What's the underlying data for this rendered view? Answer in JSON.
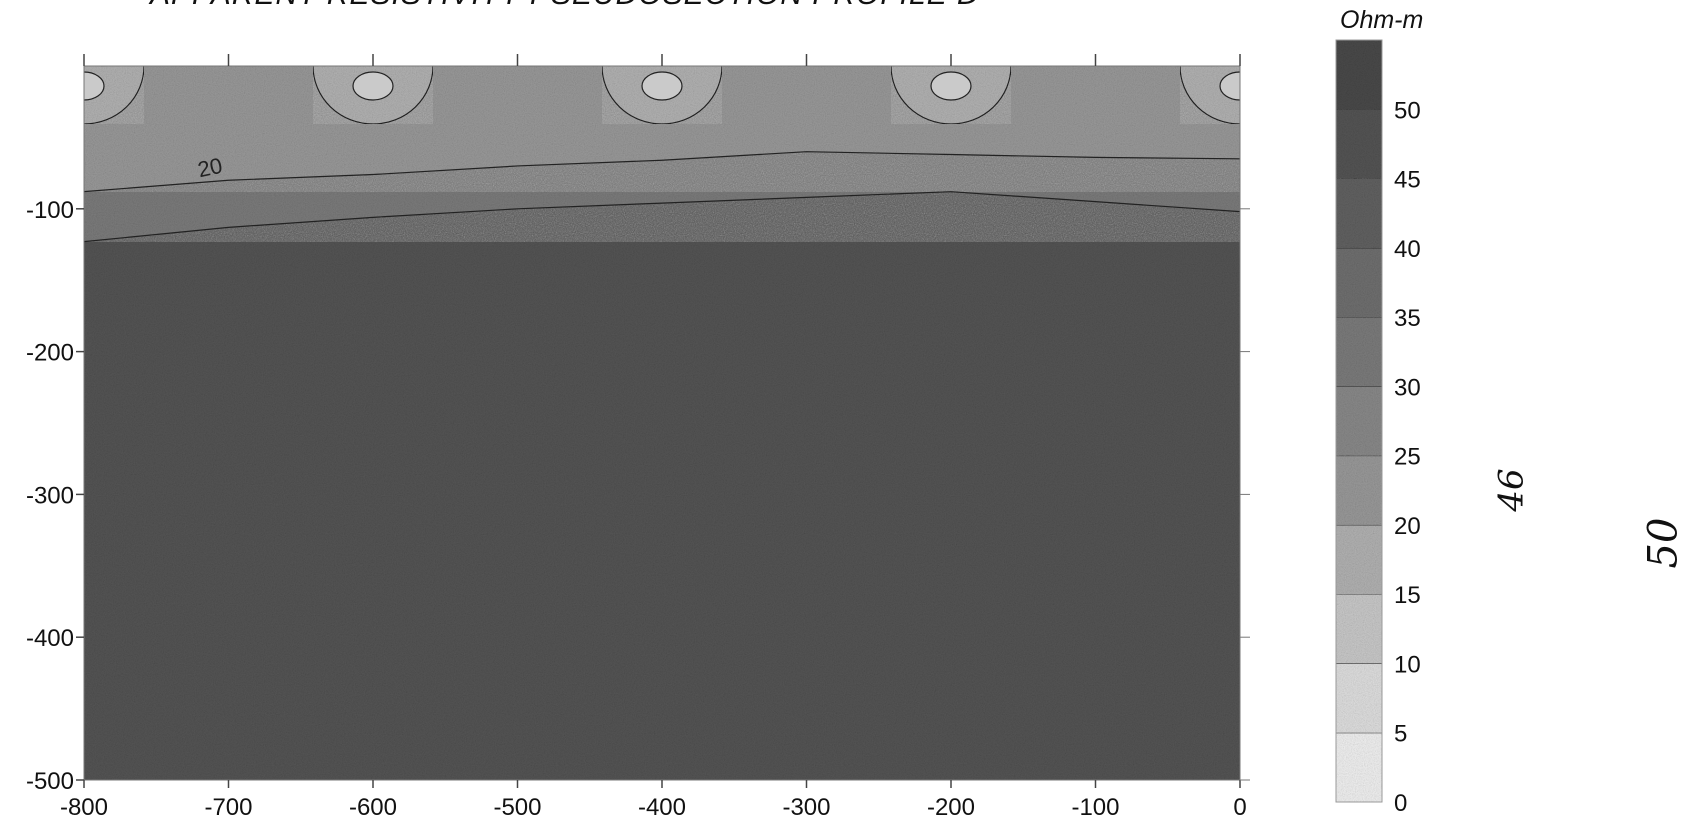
{
  "title": "APPARENT RESISTIVITY PSEUDOSECTION PROFILE D",
  "units": "Ohm-m",
  "handwritten_marks": [
    "46",
    "50"
  ],
  "colors": {
    "background": "#ffffff",
    "ink": "#111111"
  },
  "chart_data": {
    "type": "heatmap",
    "title": "APPARENT RESISTIVITY PSEUDOSECTION PROFILE D",
    "xlabel": "",
    "ylabel": "",
    "xlim": [
      -800,
      0
    ],
    "ylim": [
      -500,
      0
    ],
    "x_ticks": [
      -800,
      -700,
      -600,
      -500,
      -400,
      -300,
      -200,
      -100,
      0
    ],
    "y_ticks": [
      -100,
      -200,
      -300,
      -400,
      -500
    ],
    "colorbar": {
      "label": "Ohm-m",
      "min": 0,
      "max": 55,
      "ticks": [
        0,
        5,
        10,
        15,
        20,
        25,
        30,
        35,
        40,
        45,
        50
      ],
      "levels": [
        {
          "from": 0,
          "to": 5,
          "color": "#f2f2f2"
        },
        {
          "from": 5,
          "to": 10,
          "color": "#e0e0e0"
        },
        {
          "from": 10,
          "to": 15,
          "color": "#cacaca"
        },
        {
          "from": 15,
          "to": 20,
          "color": "#b3b3b3"
        },
        {
          "from": 20,
          "to": 25,
          "color": "#9a9a9a"
        },
        {
          "from": 25,
          "to": 30,
          "color": "#8a8a8a"
        },
        {
          "from": 30,
          "to": 35,
          "color": "#7c7c7c"
        },
        {
          "from": 35,
          "to": 40,
          "color": "#707070"
        },
        {
          "from": 40,
          "to": 45,
          "color": "#626262"
        },
        {
          "from": 45,
          "to": 50,
          "color": "#555555"
        },
        {
          "from": 50,
          "to": 55,
          "color": "#4a4a4a"
        }
      ]
    },
    "contour_labels": [
      {
        "x": -720,
        "y": -78,
        "value": "20"
      }
    ],
    "top_zone": {
      "near_surface_value_range": [
        10,
        20
      ],
      "contour_20_depth": [
        [
          -800,
          -88
        ],
        [
          -700,
          -80
        ],
        [
          -600,
          -76
        ],
        [
          -500,
          -70
        ],
        [
          -400,
          -66
        ],
        [
          -300,
          -60
        ],
        [
          -200,
          -62
        ],
        [
          -100,
          -64
        ],
        [
          0,
          -65
        ]
      ],
      "contour_30_depth": [
        [
          -800,
          -123
        ],
        [
          -700,
          -113
        ],
        [
          -600,
          -106
        ],
        [
          -500,
          -100
        ],
        [
          -400,
          -96
        ],
        [
          -300,
          -92
        ],
        [
          -200,
          -88
        ],
        [
          -100,
          -95
        ],
        [
          0,
          -102
        ]
      ],
      "low_resistivity_lobes_center_x": [
        -800,
        -600,
        -400,
        -200,
        0
      ]
    },
    "deep_background_value": 45
  }
}
